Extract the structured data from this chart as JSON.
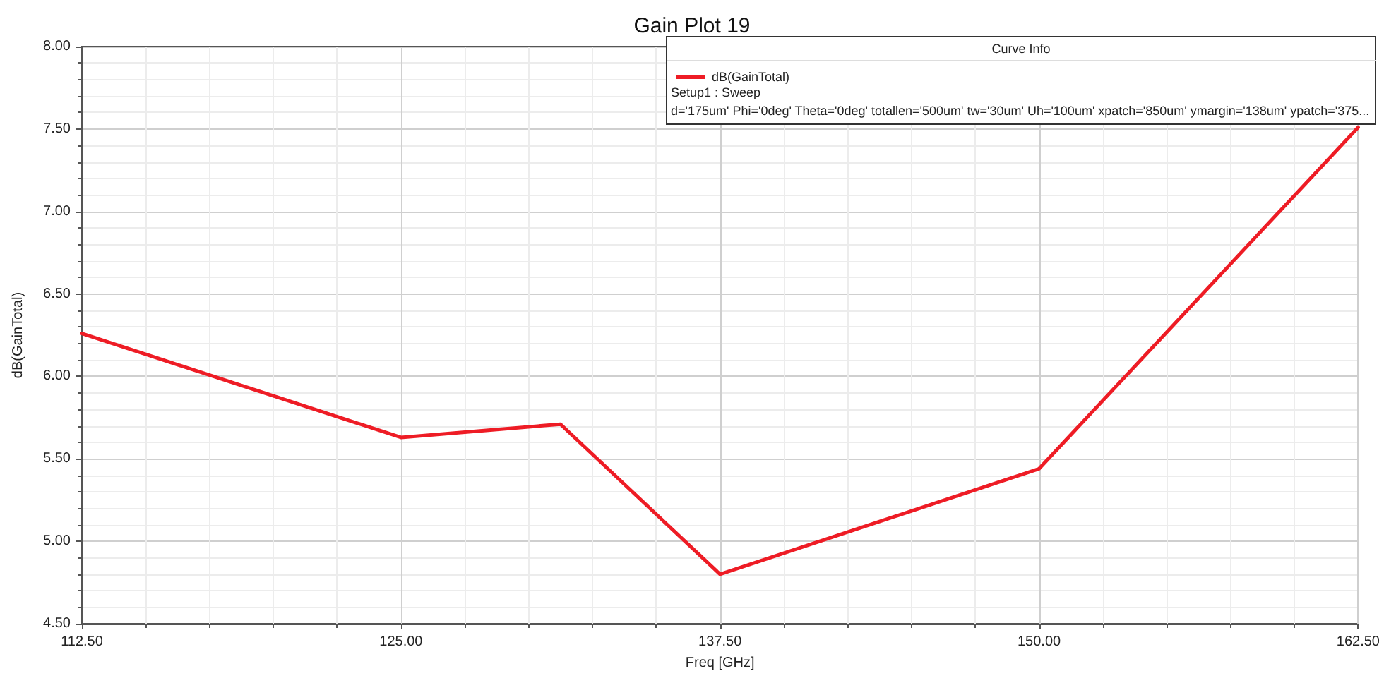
{
  "chart_data": {
    "type": "line",
    "title": "Gain Plot 19",
    "xlabel": "Freq [GHz]",
    "ylabel": "dB(GainTotal)",
    "legend_title": "Curve Info",
    "annotations": [
      "Setup1 : Sweep",
      "d='175um' Phi='0deg' Theta='0deg' totallen='500um' tw='30um' Uh='100um' xpatch='850um' ymargin='138um' ypatch='375..."
    ],
    "x": [
      112.5,
      125,
      131.25,
      137.5,
      150,
      162.5
    ],
    "series": [
      {
        "name": "dB(GainTotal)",
        "color": "#ee1c25",
        "values": [
          6.26,
          5.63,
          5.71,
          4.8,
          5.44,
          7.51
        ]
      }
    ],
    "xlim": [
      112.5,
      162.5
    ],
    "xticks": [
      {
        "value": 112.5,
        "label": "112.50"
      },
      {
        "value": 125,
        "label": "125.00"
      },
      {
        "value": 137.5,
        "label": "137.50"
      },
      {
        "value": 150,
        "label": "150.00"
      },
      {
        "value": 162.5,
        "label": "162.50"
      }
    ],
    "ylim": [
      4.5,
      8
    ],
    "yticks": [
      {
        "value": 4.5,
        "label": "4.50"
      },
      {
        "value": 5,
        "label": "5.00"
      },
      {
        "value": 5.5,
        "label": "5.50"
      },
      {
        "value": 6,
        "label": "6.00"
      },
      {
        "value": 6.5,
        "label": "6.50"
      },
      {
        "value": 7,
        "label": "7.00"
      },
      {
        "value": 7.5,
        "label": "7.50"
      },
      {
        "value": 8,
        "label": "8.00"
      }
    ],
    "grid": true,
    "legend": "top right",
    "marker": "none",
    "line_style": "solid"
  }
}
